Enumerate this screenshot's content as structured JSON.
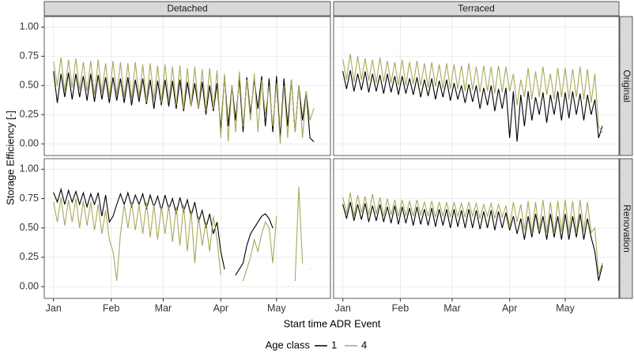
{
  "chart_data": {
    "type": "line",
    "columns": [
      "Detached",
      "Terraced"
    ],
    "rows": [
      "Original",
      "Renovation"
    ],
    "x_label": "Start time ADR Event",
    "y_label": "Storage Efficiency [-]",
    "legend_title": "Age class",
    "series": [
      {
        "name": "1",
        "color": "#000000"
      },
      {
        "name": "4",
        "color": "#a8a95a"
      }
    ],
    "xlim": [
      -5,
      149
    ],
    "xticks": [
      {
        "value": 0,
        "label": "Jan"
      },
      {
        "value": 31,
        "label": "Feb"
      },
      {
        "value": 59,
        "label": "Mar"
      },
      {
        "value": 90,
        "label": "Apr"
      },
      {
        "value": 120,
        "label": "May"
      }
    ],
    "ylim": [
      -0.1,
      1.09
    ],
    "yticks": [
      {
        "value": 0,
        "label": "0.00"
      },
      {
        "value": 0.25,
        "label": "0.25"
      },
      {
        "value": 0.5,
        "label": "0.50"
      },
      {
        "value": 0.75,
        "label": "0.75"
      },
      {
        "value": 1,
        "label": "1.00"
      }
    ],
    "grid": true,
    "x": [
      0,
      2,
      4,
      6,
      8,
      10,
      12,
      14,
      16,
      18,
      20,
      22,
      24,
      26,
      28,
      30,
      32,
      34,
      36,
      38,
      40,
      42,
      44,
      46,
      48,
      50,
      52,
      54,
      56,
      58,
      60,
      62,
      64,
      66,
      68,
      70,
      72,
      74,
      76,
      78,
      80,
      82,
      84,
      86,
      88,
      90,
      92,
      94,
      96,
      98,
      100,
      102,
      104,
      106,
      108,
      110,
      112,
      114,
      116,
      118,
      120,
      122,
      124,
      126,
      128,
      130,
      132,
      134,
      136,
      138,
      140
    ],
    "panels": [
      {
        "series": [
          {
            "values": [
              0.62,
              0.35,
              0.6,
              0.4,
              0.61,
              0.38,
              0.6,
              0.4,
              0.58,
              0.37,
              0.6,
              0.36,
              0.59,
              0.38,
              0.57,
              0.35,
              0.57,
              0.37,
              0.56,
              0.35,
              0.57,
              0.33,
              0.55,
              0.36,
              0.56,
              0.34,
              0.55,
              0.3,
              0.54,
              0.33,
              0.55,
              0.32,
              0.54,
              0.3,
              0.55,
              0.28,
              0.53,
              0.32,
              0.52,
              0.3,
              0.53,
              0.25,
              0.5,
              0.28,
              0.52,
              0.12,
              0.58,
              0.15,
              0.5,
              0.2,
              0.56,
              0.1,
              0.57,
              0.25,
              0.55,
              0.3,
              0.58,
              0.15,
              0.56,
              0.1,
              0.58,
              0.05,
              0.56,
              0.15,
              0.55,
              0.1,
              0.5,
              0.2,
              0.45,
              0.05,
              0.02
            ]
          },
          {
            "values": [
              0.7,
              0.5,
              0.74,
              0.45,
              0.72,
              0.48,
              0.73,
              0.46,
              0.7,
              0.45,
              0.71,
              0.42,
              0.72,
              0.44,
              0.69,
              0.4,
              0.71,
              0.42,
              0.7,
              0.4,
              0.69,
              0.38,
              0.7,
              0.4,
              0.68,
              0.36,
              0.69,
              0.38,
              0.67,
              0.35,
              0.68,
              0.36,
              0.66,
              0.33,
              0.67,
              0.3,
              0.65,
              0.32,
              0.66,
              0.3,
              0.64,
              0.28,
              0.65,
              0.3,
              0.63,
              0.05,
              0.6,
              0.02,
              0.5,
              0.1,
              0.62,
              0.15,
              0.55,
              0.2,
              0.6,
              0.1,
              0.55,
              0.25,
              0.5,
              0.15,
              0.52,
              0.0,
              0.5,
              0.05,
              0.55,
              0.1,
              0.5,
              0.05,
              0.45,
              0.2,
              0.3
            ]
          }
        ]
      },
      {
        "series": [
          {
            "values": [
              0.62,
              0.47,
              0.63,
              0.45,
              0.6,
              0.46,
              0.62,
              0.44,
              0.6,
              0.45,
              0.59,
              0.43,
              0.6,
              0.44,
              0.58,
              0.42,
              0.58,
              0.43,
              0.56,
              0.42,
              0.57,
              0.4,
              0.55,
              0.41,
              0.56,
              0.38,
              0.54,
              0.4,
              0.55,
              0.37,
              0.52,
              0.38,
              0.5,
              0.35,
              0.51,
              0.36,
              0.5,
              0.3,
              0.48,
              0.33,
              0.5,
              0.28,
              0.47,
              0.3,
              0.48,
              0.05,
              0.45,
              0.02,
              0.42,
              0.15,
              0.45,
              0.2,
              0.4,
              0.25,
              0.44,
              0.18,
              0.42,
              0.25,
              0.45,
              0.2,
              0.44,
              0.22,
              0.45,
              0.25,
              0.43,
              0.2,
              0.42,
              0.25,
              0.38,
              0.05,
              0.15
            ]
          },
          {
            "values": [
              0.72,
              0.55,
              0.77,
              0.53,
              0.75,
              0.55,
              0.73,
              0.54,
              0.72,
              0.52,
              0.74,
              0.53,
              0.71,
              0.52,
              0.7,
              0.5,
              0.72,
              0.5,
              0.7,
              0.51,
              0.71,
              0.5,
              0.69,
              0.48,
              0.7,
              0.49,
              0.68,
              0.47,
              0.69,
              0.47,
              0.68,
              0.47,
              0.67,
              0.45,
              0.69,
              0.46,
              0.66,
              0.44,
              0.67,
              0.45,
              0.66,
              0.43,
              0.67,
              0.44,
              0.66,
              0.45,
              0.6,
              0.33,
              0.55,
              0.4,
              0.65,
              0.38,
              0.62,
              0.4,
              0.66,
              0.42,
              0.6,
              0.38,
              0.65,
              0.4,
              0.65,
              0.38,
              0.64,
              0.4,
              0.66,
              0.38,
              0.64,
              0.35,
              0.6,
              0.15,
              0.1
            ]
          }
        ]
      },
      {
        "series": [
          {
            "values": [
              0.8,
              0.72,
              0.83,
              0.7,
              0.82,
              0.72,
              0.81,
              0.7,
              0.8,
              0.68,
              0.79,
              0.7,
              0.8,
              0.6,
              0.78,
              0.55,
              0.6,
              0.7,
              0.79,
              0.7,
              0.8,
              0.68,
              0.78,
              0.7,
              0.79,
              0.66,
              0.78,
              0.68,
              0.77,
              0.65,
              0.78,
              0.66,
              0.75,
              0.62,
              0.76,
              0.64,
              0.74,
              0.6,
              0.72,
              0.55,
              0.65,
              0.5,
              0.62,
              0.45,
              0.55,
              0.3,
              0.15,
              null,
              null,
              0.1,
              0.15,
              0.2,
              0.35,
              0.45,
              0.5,
              0.55,
              0.6,
              0.62,
              0.58,
              0.5,
              null,
              null,
              null,
              null,
              null,
              null,
              null,
              null,
              null,
              null,
              null
            ]
          },
          {
            "values": [
              0.72,
              0.55,
              0.76,
              0.52,
              0.74,
              0.55,
              0.75,
              0.5,
              0.73,
              0.52,
              0.72,
              0.48,
              0.7,
              0.45,
              0.65,
              0.4,
              0.3,
              0.05,
              0.45,
              0.7,
              0.5,
              0.72,
              0.48,
              0.7,
              0.45,
              0.72,
              0.42,
              0.7,
              0.4,
              0.68,
              0.45,
              0.7,
              0.38,
              0.68,
              0.35,
              0.7,
              0.3,
              0.65,
              0.2,
              0.6,
              0.35,
              0.55,
              0.3,
              0.6,
              0.4,
              0.1,
              null,
              null,
              null,
              null,
              null,
              0.05,
              0.15,
              0.25,
              0.4,
              0.3,
              0.45,
              0.55,
              0.5,
              0.2,
              0.6,
              null,
              null,
              null,
              null,
              0.05,
              0.85,
              0.2,
              null,
              0.15,
              null
            ]
          }
        ]
      },
      {
        "series": [
          {
            "values": [
              0.7,
              0.58,
              0.72,
              0.56,
              0.7,
              0.57,
              0.71,
              0.55,
              0.69,
              0.56,
              0.7,
              0.55,
              0.68,
              0.54,
              0.69,
              0.53,
              0.68,
              0.54,
              0.67,
              0.52,
              0.68,
              0.53,
              0.66,
              0.52,
              0.67,
              0.51,
              0.66,
              0.52,
              0.66,
              0.5,
              0.66,
              0.51,
              0.65,
              0.5,
              0.66,
              0.5,
              0.65,
              0.49,
              0.64,
              0.5,
              0.65,
              0.48,
              0.64,
              0.5,
              0.63,
              0.48,
              0.6,
              0.45,
              0.58,
              0.4,
              0.6,
              0.42,
              0.62,
              0.45,
              0.6,
              0.4,
              0.62,
              0.42,
              0.6,
              0.4,
              0.62,
              0.4,
              0.6,
              0.42,
              0.62,
              0.4,
              0.58,
              0.42,
              0.3,
              0.05,
              0.18
            ]
          },
          {
            "values": [
              0.76,
              0.62,
              0.8,
              0.6,
              0.78,
              0.63,
              0.77,
              0.61,
              0.79,
              0.62,
              0.76,
              0.6,
              0.75,
              0.61,
              0.74,
              0.6,
              0.74,
              0.6,
              0.73,
              0.6,
              0.74,
              0.61,
              0.72,
              0.6,
              0.73,
              0.59,
              0.72,
              0.6,
              0.72,
              0.59,
              0.72,
              0.6,
              0.71,
              0.59,
              0.72,
              0.6,
              0.71,
              0.58,
              0.7,
              0.6,
              0.71,
              0.58,
              0.7,
              0.59,
              0.69,
              0.5,
              0.72,
              0.55,
              0.7,
              0.48,
              0.73,
              0.45,
              0.72,
              0.47,
              0.74,
              0.46,
              0.72,
              0.45,
              0.73,
              0.47,
              0.74,
              0.46,
              0.73,
              0.45,
              0.74,
              0.47,
              0.72,
              0.46,
              0.5,
              0.1,
              0.2
            ]
          }
        ]
      }
    ]
  }
}
